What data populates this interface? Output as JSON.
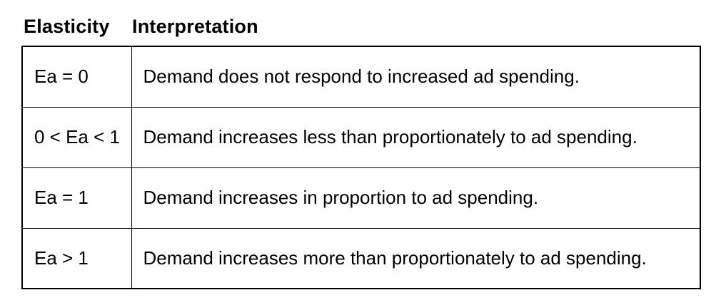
{
  "table": {
    "headers": [
      {
        "label": "Elasticity"
      },
      {
        "label": "Interpretation"
      }
    ],
    "rows": [
      {
        "elasticity": "Ea = 0",
        "interpretation": "Demand does not respond to increased ad spending."
      },
      {
        "elasticity": "0 < Ea < 1",
        "interpretation": "Demand increases less than proportionately to ad spending."
      },
      {
        "elasticity": "Ea = 1",
        "interpretation": "Demand increases in proportion to ad spending."
      },
      {
        "elasticity": "Ea > 1",
        "interpretation": "Demand increases more than proportionately to ad spending."
      }
    ]
  },
  "colors": {
    "text": "#000000",
    "border": "#000000",
    "background": "#ffffff"
  }
}
